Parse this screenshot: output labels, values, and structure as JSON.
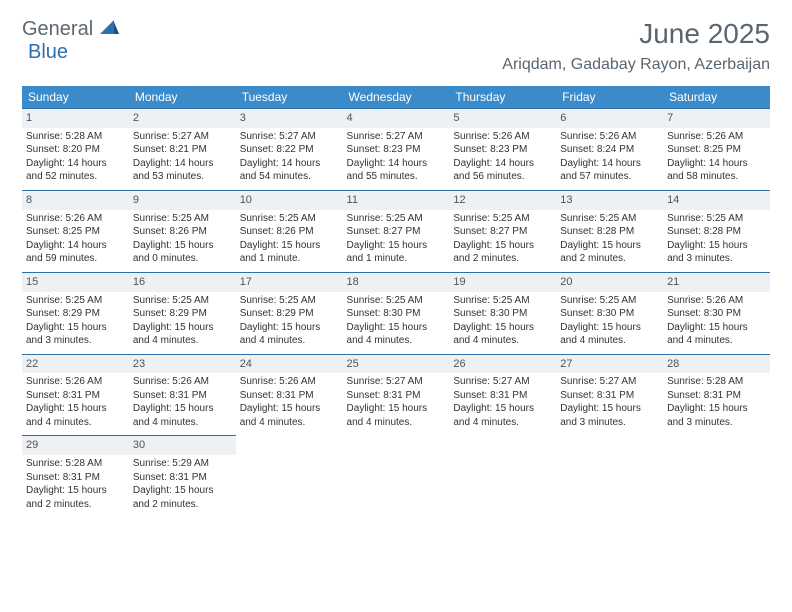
{
  "brand": {
    "part1": "General",
    "part2": "Blue"
  },
  "title": "June 2025",
  "location": "Ariqdam, Gadabay Rayon, Azerbaijan",
  "columns": [
    "Sunday",
    "Monday",
    "Tuesday",
    "Wednesday",
    "Thursday",
    "Friday",
    "Saturday"
  ],
  "colors": {
    "header_bg": "#3b8bca",
    "header_fg": "#ffffff",
    "rule": "#2f6fa8",
    "daynum_bg": "#eef1f3",
    "text": "#333333",
    "title_fg": "#5a6570",
    "brand_gray": "#5d6770",
    "brand_blue": "#2f6fb0"
  },
  "days": [
    {
      "n": 1,
      "sunrise": "5:28 AM",
      "sunset": "8:20 PM",
      "daylight": "14 hours and 52 minutes."
    },
    {
      "n": 2,
      "sunrise": "5:27 AM",
      "sunset": "8:21 PM",
      "daylight": "14 hours and 53 minutes."
    },
    {
      "n": 3,
      "sunrise": "5:27 AM",
      "sunset": "8:22 PM",
      "daylight": "14 hours and 54 minutes."
    },
    {
      "n": 4,
      "sunrise": "5:27 AM",
      "sunset": "8:23 PM",
      "daylight": "14 hours and 55 minutes."
    },
    {
      "n": 5,
      "sunrise": "5:26 AM",
      "sunset": "8:23 PM",
      "daylight": "14 hours and 56 minutes."
    },
    {
      "n": 6,
      "sunrise": "5:26 AM",
      "sunset": "8:24 PM",
      "daylight": "14 hours and 57 minutes."
    },
    {
      "n": 7,
      "sunrise": "5:26 AM",
      "sunset": "8:25 PM",
      "daylight": "14 hours and 58 minutes."
    },
    {
      "n": 8,
      "sunrise": "5:26 AM",
      "sunset": "8:25 PM",
      "daylight": "14 hours and 59 minutes."
    },
    {
      "n": 9,
      "sunrise": "5:25 AM",
      "sunset": "8:26 PM",
      "daylight": "15 hours and 0 minutes."
    },
    {
      "n": 10,
      "sunrise": "5:25 AM",
      "sunset": "8:26 PM",
      "daylight": "15 hours and 1 minute."
    },
    {
      "n": 11,
      "sunrise": "5:25 AM",
      "sunset": "8:27 PM",
      "daylight": "15 hours and 1 minute."
    },
    {
      "n": 12,
      "sunrise": "5:25 AM",
      "sunset": "8:27 PM",
      "daylight": "15 hours and 2 minutes."
    },
    {
      "n": 13,
      "sunrise": "5:25 AM",
      "sunset": "8:28 PM",
      "daylight": "15 hours and 2 minutes."
    },
    {
      "n": 14,
      "sunrise": "5:25 AM",
      "sunset": "8:28 PM",
      "daylight": "15 hours and 3 minutes."
    },
    {
      "n": 15,
      "sunrise": "5:25 AM",
      "sunset": "8:29 PM",
      "daylight": "15 hours and 3 minutes."
    },
    {
      "n": 16,
      "sunrise": "5:25 AM",
      "sunset": "8:29 PM",
      "daylight": "15 hours and 4 minutes."
    },
    {
      "n": 17,
      "sunrise": "5:25 AM",
      "sunset": "8:29 PM",
      "daylight": "15 hours and 4 minutes."
    },
    {
      "n": 18,
      "sunrise": "5:25 AM",
      "sunset": "8:30 PM",
      "daylight": "15 hours and 4 minutes."
    },
    {
      "n": 19,
      "sunrise": "5:25 AM",
      "sunset": "8:30 PM",
      "daylight": "15 hours and 4 minutes."
    },
    {
      "n": 20,
      "sunrise": "5:25 AM",
      "sunset": "8:30 PM",
      "daylight": "15 hours and 4 minutes."
    },
    {
      "n": 21,
      "sunrise": "5:26 AM",
      "sunset": "8:30 PM",
      "daylight": "15 hours and 4 minutes."
    },
    {
      "n": 22,
      "sunrise": "5:26 AM",
      "sunset": "8:31 PM",
      "daylight": "15 hours and 4 minutes."
    },
    {
      "n": 23,
      "sunrise": "5:26 AM",
      "sunset": "8:31 PM",
      "daylight": "15 hours and 4 minutes."
    },
    {
      "n": 24,
      "sunrise": "5:26 AM",
      "sunset": "8:31 PM",
      "daylight": "15 hours and 4 minutes."
    },
    {
      "n": 25,
      "sunrise": "5:27 AM",
      "sunset": "8:31 PM",
      "daylight": "15 hours and 4 minutes."
    },
    {
      "n": 26,
      "sunrise": "5:27 AM",
      "sunset": "8:31 PM",
      "daylight": "15 hours and 4 minutes."
    },
    {
      "n": 27,
      "sunrise": "5:27 AM",
      "sunset": "8:31 PM",
      "daylight": "15 hours and 3 minutes."
    },
    {
      "n": 28,
      "sunrise": "5:28 AM",
      "sunset": "8:31 PM",
      "daylight": "15 hours and 3 minutes."
    },
    {
      "n": 29,
      "sunrise": "5:28 AM",
      "sunset": "8:31 PM",
      "daylight": "15 hours and 2 minutes."
    },
    {
      "n": 30,
      "sunrise": "5:29 AM",
      "sunset": "8:31 PM",
      "daylight": "15 hours and 2 minutes."
    }
  ],
  "labels": {
    "sunrise": "Sunrise:",
    "sunset": "Sunset:",
    "daylight": "Daylight:"
  },
  "layout": {
    "first_weekday_index": 0,
    "weeks": 5,
    "cols": 7
  }
}
